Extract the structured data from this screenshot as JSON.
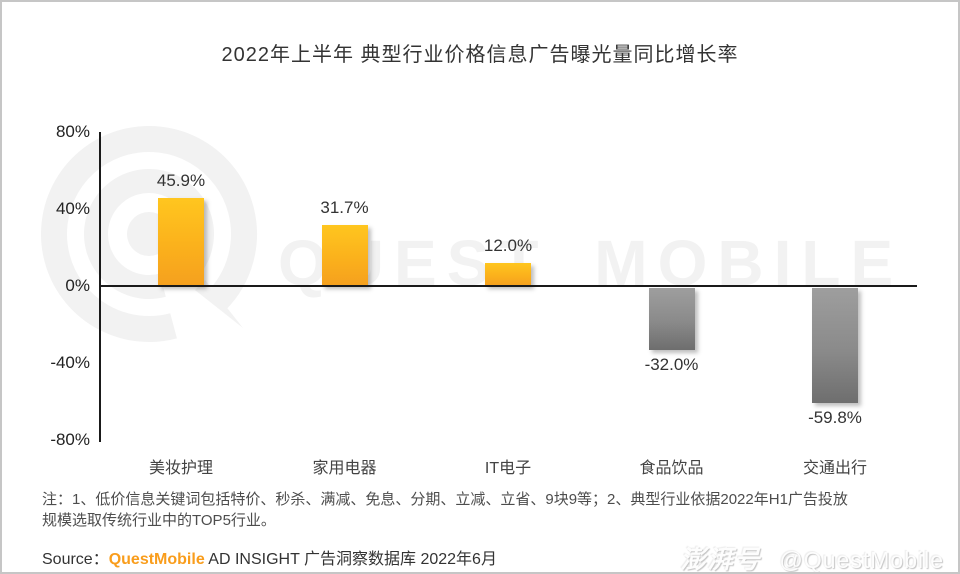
{
  "title": "2022年上半年 典型行业价格信息广告曝光量同比增长率",
  "chart_data": {
    "type": "bar",
    "title": "2022年上半年 典型行业价格信息广告曝光量同比增长率",
    "categories": [
      "美妆护理",
      "家用电器",
      "IT电子",
      "食品饮品",
      "交通出行"
    ],
    "values": [
      45.9,
      31.7,
      12.0,
      -32.0,
      -59.8
    ],
    "value_labels": [
      "45.9%",
      "31.7%",
      "12.0%",
      "-32.0%",
      "-59.8%"
    ],
    "xlabel": "",
    "ylabel": "",
    "ylim": [
      -80,
      80
    ],
    "yticks": [
      {
        "label": "80%",
        "value": 80
      },
      {
        "label": "40%",
        "value": 40
      },
      {
        "label": "0%",
        "value": 0
      },
      {
        "label": "-40%",
        "value": -40
      },
      {
        "label": "-80%",
        "value": -80
      }
    ],
    "grid": false,
    "legend": "none",
    "positive_bar_color_top": "#ffc61f",
    "positive_bar_color_bottom": "#f5a01e",
    "negative_bar_color_top": "#9e9e9e",
    "negative_bar_color_bottom": "#6e6e6e"
  },
  "watermark": {
    "center_text": "QUEST MOBILE",
    "logo_color": "#f2f2f2"
  },
  "notes": {
    "lines": [
      "注：1、低价信息关键词包括特价、秒杀、满减、免息、分期、立减、立省、9块9等；2、典型行业依据2022年H1广告投放",
      "规模选取传统行业中的TOP5行业。"
    ]
  },
  "source": {
    "prefix": "Source：",
    "brand": "QuestMobile",
    "rest": " AD INSIGHT 广告洞察数据库 2022年6月"
  },
  "footer_watermark": {
    "platform": "澎湃号",
    "handle": "@QuestMobile"
  },
  "colors": {
    "brand_orange": "#f99d1c",
    "axis": "#1a1a1a",
    "watermark_gray": "#f2f2f2"
  }
}
